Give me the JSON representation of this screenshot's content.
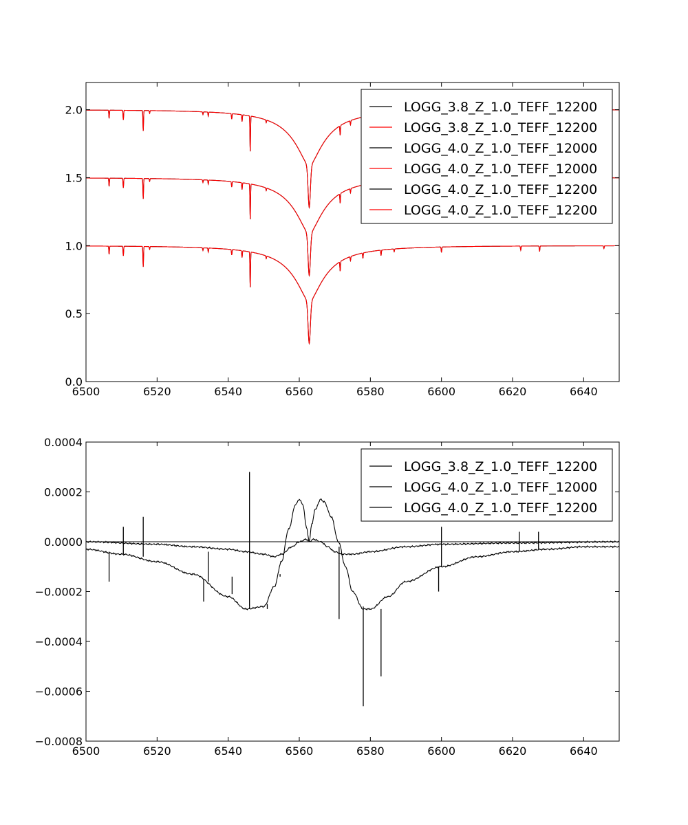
{
  "chart_data": [
    {
      "type": "line",
      "title": "",
      "xlabel": "",
      "ylabel": "",
      "xlim": [
        6500,
        6650
      ],
      "ylim": [
        0.0,
        2.2
      ],
      "xticks": [
        "6500",
        "6520",
        "6540",
        "6560",
        "6580",
        "6600",
        "6620",
        "6640"
      ],
      "yticks": [
        "0.0",
        "0.5",
        "1.0",
        "1.5",
        "2.0"
      ],
      "grid": false,
      "legend_position": "top-right",
      "line_center": 6562.8,
      "absorption_lines": [
        6506.5,
        6510.5,
        6516.1,
        6517.9,
        6532.9,
        6534.4,
        6541.0,
        6543.9,
        6546.2,
        6550.7,
        6571.5,
        6574.4,
        6577.9,
        6583.0,
        6586.7,
        6600.0,
        6622.3,
        6627.6,
        6645.7
      ],
      "series": [
        {
          "name": "LOGG_3.8_Z_1.0_TEFF_12200",
          "color": "#000000",
          "offset": 1.0,
          "values_note_x": [
            6500,
            6540,
            6555,
            6560,
            6562.8,
            6566,
            6575,
            6600,
            6650
          ],
          "values": [
            1.0,
            0.98,
            0.85,
            0.68,
            0.33,
            0.62,
            0.87,
            0.985,
            1.0
          ]
        },
        {
          "name": "LOGG_3.8_Z_1.0_TEFF_12200",
          "color": "#ff0000",
          "offset": 1.0,
          "values": [
            1.0,
            0.98,
            0.85,
            0.68,
            0.33,
            0.62,
            0.87,
            0.985,
            1.0
          ]
        },
        {
          "name": "LOGG_4.0_Z_1.0_TEFF_12000",
          "color": "#000000",
          "offset": 0.5,
          "values": [
            1.0,
            0.98,
            0.85,
            0.68,
            0.33,
            0.62,
            0.87,
            0.985,
            1.0
          ]
        },
        {
          "name": "LOGG_4.0_Z_1.0_TEFF_12000",
          "color": "#ff0000",
          "offset": 0.5,
          "values": [
            1.0,
            0.98,
            0.85,
            0.68,
            0.33,
            0.62,
            0.87,
            0.985,
            1.0
          ]
        },
        {
          "name": "LOGG_4.0_Z_1.0_TEFF_12200",
          "color": "#000000",
          "offset": 0.0,
          "values": [
            1.0,
            0.98,
            0.85,
            0.68,
            0.33,
            0.62,
            0.87,
            0.985,
            1.0
          ]
        },
        {
          "name": "LOGG_4.0_Z_1.0_TEFF_12200",
          "color": "#ff0000",
          "offset": 0.0,
          "values": [
            1.0,
            0.98,
            0.85,
            0.68,
            0.33,
            0.62,
            0.87,
            0.985,
            1.0
          ]
        }
      ]
    },
    {
      "type": "line",
      "title": "",
      "xlabel": "",
      "ylabel": "",
      "xlim": [
        6500,
        6650
      ],
      "ylim": [
        -0.0008,
        0.0004
      ],
      "xticks": [
        "6500",
        "6520",
        "6540",
        "6560",
        "6580",
        "6600",
        "6620",
        "6640"
      ],
      "yticks": [
        "0.0004",
        "0.0002",
        "0.0000",
        "−0.0002",
        "−0.0004",
        "−0.0006",
        "−0.0008"
      ],
      "grid": false,
      "legend_position": "top-right",
      "series": [
        {
          "name": "LOGG_3.8_Z_1.0_TEFF_12200",
          "color": "#000000",
          "x": [
            6500,
            6650
          ],
          "values": [
            0.0,
            0.0
          ]
        },
        {
          "name": "LOGG_4.0_Z_1.0_TEFF_12000",
          "color": "#000000",
          "x": [
            6500,
            6510,
            6520,
            6530,
            6540,
            6545,
            6550,
            6553,
            6555,
            6557,
            6559,
            6560,
            6561,
            6562,
            6562.8,
            6563.5,
            6564.5,
            6566,
            6567,
            6569,
            6571,
            6573,
            6575,
            6578,
            6580,
            6585,
            6590,
            6600,
            6610,
            6620,
            6630,
            6640,
            6650
          ],
          "values": [
            -3e-05,
            -5e-05,
            -8e-05,
            -0.00013,
            -0.00022,
            -0.00027,
            -0.00026,
            -0.00018,
            -8e-05,
            5e-05,
            0.00015,
            0.00017,
            0.00015,
            6e-05,
            0.0,
            7e-05,
            0.00013,
            0.00017,
            0.00016,
            0.0001,
            0.0,
            -0.0001,
            -0.0002,
            -0.00027,
            -0.00027,
            -0.00022,
            -0.00016,
            -0.0001,
            -6e-05,
            -4e-05,
            -3e-05,
            -2e-05,
            -2e-05
          ]
        },
        {
          "name": "LOGG_4.0_Z_1.0_TEFF_12200",
          "color": "#000000",
          "x": [
            6500,
            6520,
            6530,
            6540,
            6545,
            6550,
            6553,
            6555,
            6558,
            6560,
            6562,
            6562.8,
            6564,
            6566,
            6568,
            6570,
            6572,
            6575,
            6580,
            6590,
            6600,
            6620,
            6650
          ],
          "values": [
            0.0,
            -1e-05,
            -2e-05,
            -3e-05,
            -4e-05,
            -5e-05,
            -6e-05,
            -5e-05,
            -2e-05,
            0.0,
            1e-05,
            0.0,
            1e-05,
            0.0,
            -2e-05,
            -4e-05,
            -5e-05,
            -5e-05,
            -4e-05,
            -2e-05,
            -1e-05,
            -5e-06,
            0.0
          ]
        }
      ],
      "spikes": [
        {
          "x": 6506.5,
          "y0": -4e-05,
          "y1": -0.00016
        },
        {
          "x": 6510.5,
          "y0": -5e-05,
          "y1": 6e-05
        },
        {
          "x": 6516.1,
          "y0": -6e-05,
          "y1": 0.0001
        },
        {
          "x": 6533.1,
          "y0": -0.00015,
          "y1": -0.00024
        },
        {
          "x": 6534.4,
          "y0": -0.00016,
          "y1": -4e-05
        },
        {
          "x": 6541.1,
          "y0": -0.00021,
          "y1": -0.00014
        },
        {
          "x": 6546.0,
          "y0": -0.00026,
          "y1": 0.00028
        },
        {
          "x": 6546.0,
          "y0": -0.00026,
          "y1": -0.00027
        },
        {
          "x": 6551.0,
          "y0": -0.00025,
          "y1": -0.00027
        },
        {
          "x": 6554.6,
          "y0": -0.00013,
          "y1": -0.00014
        },
        {
          "x": 6571.2,
          "y0": -2e-05,
          "y1": -0.00031
        },
        {
          "x": 6578.0,
          "y0": -0.00026,
          "y1": -0.00066
        },
        {
          "x": 6583.0,
          "y0": -0.00027,
          "y1": -0.00054
        },
        {
          "x": 6599.2,
          "y0": -0.0001,
          "y1": -0.0002
        },
        {
          "x": 6600.0,
          "y0": -0.0001,
          "y1": 6e-05
        },
        {
          "x": 6621.9,
          "y0": -4e-05,
          "y1": 4e-05
        },
        {
          "x": 6627.3,
          "y0": -3e-05,
          "y1": 4e-05
        }
      ]
    }
  ]
}
